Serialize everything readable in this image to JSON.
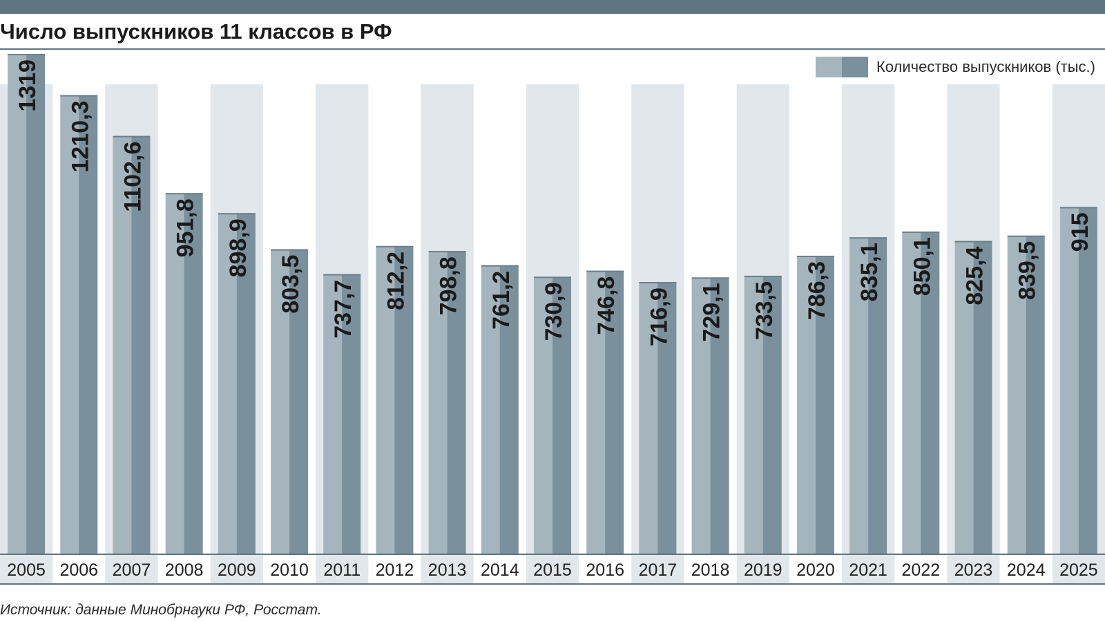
{
  "chart_data": {
    "type": "bar",
    "title": "Число выпускников 11 классов в РФ",
    "xlabel": "",
    "ylabel": "",
    "ylim": [
      0,
      1330
    ],
    "grid": false,
    "legend_position": "top-right",
    "categories": [
      "2005",
      "2006",
      "2007",
      "2008",
      "2009",
      "2010",
      "2011",
      "2012",
      "2013",
      "2014",
      "2015",
      "2016",
      "2017",
      "2018",
      "2019",
      "2020",
      "2021",
      "2022",
      "2023",
      "2024",
      "2025"
    ],
    "series": [
      {
        "name": "Количество выпускников (тыс.)",
        "values": [
          1319,
          1210.3,
          1102.6,
          951.8,
          898.9,
          803.5,
          737.7,
          812.2,
          798.8,
          761.2,
          730.9,
          746.8,
          716.9,
          729.1,
          733.5,
          786.3,
          835.1,
          850.1,
          825.4,
          839.5,
          915
        ],
        "labels": [
          "1319",
          "1210,3",
          "1102,6",
          "951,8",
          "898,9",
          "803,5",
          "737,7",
          "812,2",
          "798,8",
          "761,2",
          "730,9",
          "746,8",
          "716,9",
          "729,1",
          "733,5",
          "786,3",
          "835,1",
          "850,1",
          "825,4",
          "839,5",
          "915"
        ]
      }
    ]
  },
  "source": "Источник: данные Минобрнауки РФ, Росстат.",
  "colors": {
    "bar_light": "#a5b5be",
    "bar_dark": "#7a909c",
    "stripe": "#e1e7ea",
    "frame": "#5e7480",
    "label": "#1a1a1a"
  }
}
